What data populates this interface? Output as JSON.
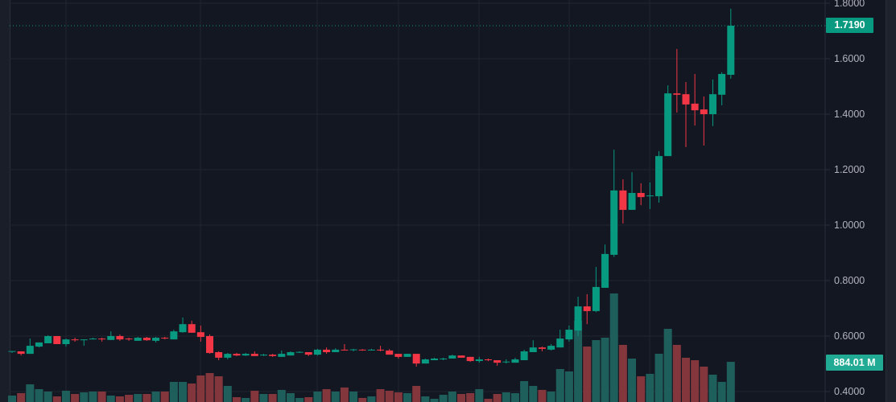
{
  "chart_data": {
    "type": "candlestick",
    "price_axis": {
      "ticks": [
        "1.8000",
        "1.6000",
        "1.4000",
        "1.2000",
        "1.0000",
        "0.8000",
        "0.6000",
        "0.4000"
      ],
      "range": [
        0.4,
        1.8
      ]
    },
    "last_price_label": "1.7190",
    "last_volume_label": "884.01 M",
    "colors": {
      "up": "#089981",
      "down": "#f23645",
      "volume_up": "#1e5f5c",
      "volume_down": "#83363c",
      "background": "#131722",
      "grid": "#22262f"
    },
    "candles_ohlc": [
      [
        0.545,
        0.546,
        0.539,
        0.546
      ],
      [
        0.545,
        0.545,
        0.53,
        0.536
      ],
      [
        0.536,
        0.591,
        0.536,
        0.565
      ],
      [
        0.562,
        0.577,
        0.559,
        0.577
      ],
      [
        0.574,
        0.603,
        0.574,
        0.6
      ],
      [
        0.6,
        0.6,
        0.571,
        0.571
      ],
      [
        0.571,
        0.591,
        0.562,
        0.588
      ],
      [
        0.588,
        0.594,
        0.58,
        0.585
      ],
      [
        0.585,
        0.588,
        0.565,
        0.588
      ],
      [
        0.588,
        0.594,
        0.588,
        0.591
      ],
      [
        0.591,
        0.594,
        0.58,
        0.588
      ],
      [
        0.586,
        0.617,
        0.586,
        0.6
      ],
      [
        0.6,
        0.606,
        0.583,
        0.588
      ],
      [
        0.591,
        0.594,
        0.583,
        0.588
      ],
      [
        0.583,
        0.597,
        0.583,
        0.594
      ],
      [
        0.594,
        0.597,
        0.583,
        0.585
      ],
      [
        0.583,
        0.597,
        0.577,
        0.594
      ],
      [
        0.594,
        0.597,
        0.588,
        0.591
      ],
      [
        0.588,
        0.623,
        0.588,
        0.617
      ],
      [
        0.614,
        0.667,
        0.612,
        0.643
      ],
      [
        0.643,
        0.655,
        0.612,
        0.612
      ],
      [
        0.614,
        0.638,
        0.58,
        0.597
      ],
      [
        0.6,
        0.606,
        0.536,
        0.539
      ],
      [
        0.542,
        0.545,
        0.513,
        0.522
      ],
      [
        0.522,
        0.539,
        0.516,
        0.536
      ],
      [
        0.536,
        0.539,
        0.528,
        0.53
      ],
      [
        0.53,
        0.539,
        0.528,
        0.536
      ],
      [
        0.536,
        0.545,
        0.528,
        0.528
      ],
      [
        0.53,
        0.536,
        0.528,
        0.533
      ],
      [
        0.533,
        0.536,
        0.525,
        0.528
      ],
      [
        0.525,
        0.548,
        0.525,
        0.536
      ],
      [
        0.53,
        0.545,
        0.53,
        0.542
      ],
      [
        0.542,
        0.545,
        0.539,
        0.543
      ],
      [
        0.542,
        0.542,
        0.528,
        0.533
      ],
      [
        0.533,
        0.554,
        0.53,
        0.551
      ],
      [
        0.551,
        0.559,
        0.536,
        0.542
      ],
      [
        0.542,
        0.556,
        0.542,
        0.551
      ],
      [
        0.551,
        0.571,
        0.548,
        0.548
      ],
      [
        0.551,
        0.554,
        0.545,
        0.552
      ],
      [
        0.551,
        0.553,
        0.547,
        0.55
      ],
      [
        0.548,
        0.554,
        0.548,
        0.551
      ],
      [
        0.551,
        0.565,
        0.545,
        0.548
      ],
      [
        0.548,
        0.553,
        0.533,
        0.533
      ],
      [
        0.536,
        0.536,
        0.519,
        0.525
      ],
      [
        0.525,
        0.536,
        0.525,
        0.536
      ],
      [
        0.536,
        0.536,
        0.49,
        0.501
      ],
      [
        0.501,
        0.519,
        0.501,
        0.516
      ],
      [
        0.513,
        0.522,
        0.513,
        0.519
      ],
      [
        0.516,
        0.522,
        0.513,
        0.519
      ],
      [
        0.519,
        0.533,
        0.519,
        0.53
      ],
      [
        0.53,
        0.53,
        0.522,
        0.522
      ],
      [
        0.525,
        0.525,
        0.507,
        0.51
      ],
      [
        0.51,
        0.525,
        0.504,
        0.516
      ],
      [
        0.516,
        0.519,
        0.51,
        0.513
      ],
      [
        0.513,
        0.513,
        0.493,
        0.504
      ],
      [
        0.507,
        0.516,
        0.501,
        0.508
      ],
      [
        0.504,
        0.522,
        0.504,
        0.516
      ],
      [
        0.513,
        0.551,
        0.513,
        0.545
      ],
      [
        0.542,
        0.585,
        0.542,
        0.559
      ],
      [
        0.559,
        0.562,
        0.545,
        0.554
      ],
      [
        0.551,
        0.571,
        0.548,
        0.565
      ],
      [
        0.559,
        0.623,
        0.559,
        0.591
      ],
      [
        0.588,
        0.638,
        0.58,
        0.623
      ],
      [
        0.62,
        0.742,
        0.6,
        0.707
      ],
      [
        0.707,
        0.751,
        0.643,
        0.69
      ],
      [
        0.69,
        0.849,
        0.686,
        0.777
      ],
      [
        0.774,
        0.93,
        0.774,
        0.896
      ],
      [
        0.893,
        1.272,
        0.885,
        1.125
      ],
      [
        1.125,
        1.165,
        1.006,
        1.055
      ],
      [
        1.055,
        1.191,
        1.055,
        1.116
      ],
      [
        1.116,
        1.151,
        1.072,
        1.101
      ],
      [
        1.104,
        1.154,
        1.058,
        1.107
      ],
      [
        1.104,
        1.267,
        1.081,
        1.249
      ],
      [
        1.249,
        1.504,
        1.249,
        1.475
      ],
      [
        1.475,
        1.635,
        1.406,
        1.47
      ],
      [
        1.472,
        1.516,
        1.281,
        1.435
      ],
      [
        1.438,
        1.545,
        1.359,
        1.414
      ],
      [
        1.417,
        1.464,
        1.287,
        1.4
      ],
      [
        1.4,
        1.525,
        1.357,
        1.472
      ],
      [
        1.47,
        1.551,
        1.432,
        1.545
      ],
      [
        1.542,
        1.78,
        1.528,
        1.719
      ]
    ],
    "volumes_millions": [
      142,
      195,
      389,
      283,
      230,
      124,
      248,
      177,
      212,
      230,
      230,
      142,
      124,
      159,
      177,
      177,
      230,
      230,
      443,
      443,
      407,
      584,
      637,
      566,
      354,
      106,
      89,
      248,
      177,
      177,
      266,
      195,
      89,
      106,
      230,
      283,
      230,
      319,
      230,
      89,
      124,
      283,
      248,
      212,
      195,
      354,
      124,
      71,
      159,
      230,
      177,
      195,
      283,
      71,
      177,
      212,
      195,
      460,
      354,
      266,
      230,
      726,
      673,
      1788,
      1221,
      1363,
      1416,
      2390,
      1257,
      956,
      566,
      620,
      1062,
      1611,
      1257,
      974,
      920,
      779,
      602,
      443,
      884
    ]
  }
}
